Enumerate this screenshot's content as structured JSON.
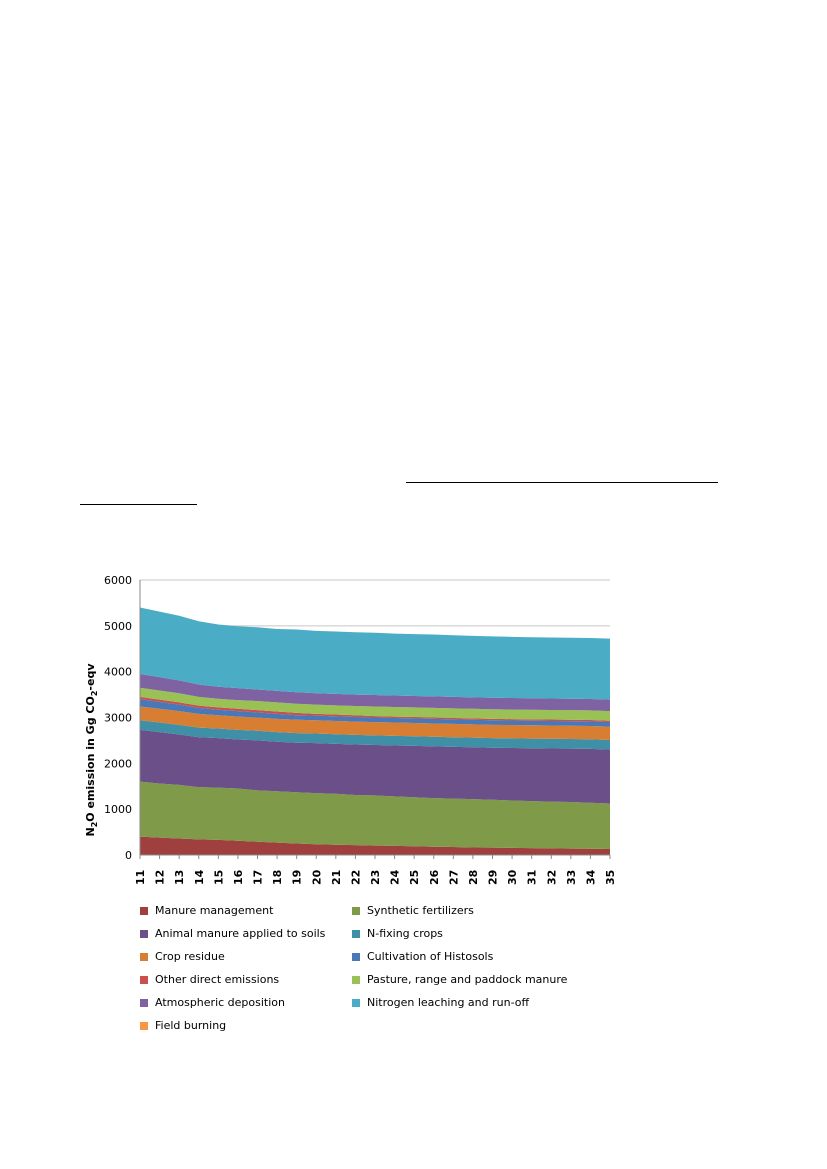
{
  "chart_data": {
    "type": "area",
    "stacked": true,
    "title": "",
    "ylabel": "N2O emission in Gg CO2-eqv",
    "ylabel_parts": {
      "pre": "N",
      "sub1": "2",
      "mid": "O emission in Gg CO",
      "sub2": "2",
      "post": "-eqv"
    },
    "xlabel": "",
    "ylim": [
      0,
      6000
    ],
    "yticks": [
      "0",
      "1000",
      "2000",
      "3000",
      "4000",
      "5000",
      "6000"
    ],
    "x": [
      "2011",
      "2012",
      "2013",
      "2014",
      "2015",
      "2016",
      "2017",
      "2018",
      "2019",
      "2020",
      "2021",
      "2022",
      "2023",
      "2024",
      "2025",
      "2026",
      "2027",
      "2028",
      "2029",
      "2030",
      "2031",
      "2032",
      "2033",
      "2034",
      "2035"
    ],
    "grid": "horizontal",
    "legend_position": "bottom",
    "series": [
      {
        "name": "Manure management",
        "color": "#a0403e",
        "values": [
          400,
          380,
          360,
          340,
          330,
          310,
          290,
          270,
          250,
          235,
          225,
          215,
          205,
          200,
          190,
          180,
          175,
          165,
          160,
          155,
          150,
          145,
          140,
          135,
          130
        ]
      },
      {
        "name": "Synthetic fertilizers",
        "color": "#7f9a48",
        "values": [
          1200,
          1180,
          1170,
          1140,
          1140,
          1140,
          1120,
          1120,
          1120,
          1115,
          1110,
          1095,
          1095,
          1080,
          1070,
          1060,
          1055,
          1055,
          1045,
          1035,
          1025,
          1020,
          1015,
          1005,
          995
        ]
      },
      {
        "name": "Animal manure applied to soils",
        "color": "#6a4f88",
        "values": [
          1130,
          1120,
          1100,
          1090,
          1080,
          1070,
          1090,
          1080,
          1080,
          1090,
          1090,
          1100,
          1100,
          1110,
          1120,
          1130,
          1130,
          1130,
          1135,
          1145,
          1155,
          1160,
          1165,
          1175,
          1175
        ]
      },
      {
        "name": "N-fixing crops",
        "color": "#3f8fa7",
        "values": [
          210,
          210,
          210,
          210,
          210,
          210,
          210,
          210,
          210,
          210,
          210,
          210,
          210,
          210,
          210,
          210,
          210,
          210,
          210,
          210,
          210,
          210,
          210,
          210,
          210
        ]
      },
      {
        "name": "Crop residue",
        "color": "#d87e33",
        "values": [
          300,
          300,
          300,
          300,
          290,
          290,
          290,
          290,
          290,
          290,
          290,
          290,
          290,
          290,
          290,
          290,
          290,
          290,
          290,
          290,
          290,
          290,
          290,
          290,
          290
        ]
      },
      {
        "name": "Cultivation of Histosols",
        "color": "#4978b8",
        "values": [
          160,
          150,
          140,
          130,
          120,
          120,
          110,
          110,
          100,
          100,
          100,
          100,
          100,
          100,
          100,
          100,
          100,
          100,
          100,
          100,
          100,
          100,
          100,
          100,
          100
        ]
      },
      {
        "name": "Other direct emissions",
        "color": "#c9504d",
        "values": [
          50,
          50,
          50,
          50,
          50,
          50,
          50,
          50,
          50,
          40,
          40,
          40,
          30,
          30,
          30,
          30,
          30,
          30,
          30,
          30,
          30,
          30,
          30,
          30,
          30
        ]
      },
      {
        "name": "Pasture, range and paddock manure",
        "color": "#9ac155",
        "values": [
          200,
          200,
          200,
          190,
          190,
          190,
          200,
          200,
          200,
          200,
          200,
          200,
          210,
          210,
          210,
          210,
          210,
          210,
          210,
          210,
          210,
          210,
          210,
          210,
          210
        ]
      },
      {
        "name": "Atmospheric deposition",
        "color": "#7e62a1",
        "values": [
          300,
          290,
          280,
          270,
          260,
          260,
          250,
          250,
          250,
          250,
          250,
          250,
          250,
          250,
          250,
          250,
          250,
          250,
          250,
          250,
          250,
          250,
          250,
          250,
          250
        ]
      },
      {
        "name": "Nitrogen leaching and run-off",
        "color": "#4bacc6",
        "values": [
          1450,
          1430,
          1410,
          1380,
          1360,
          1350,
          1360,
          1350,
          1370,
          1360,
          1360,
          1360,
          1360,
          1350,
          1350,
          1350,
          1345,
          1340,
          1340,
          1335,
          1330,
          1330,
          1330,
          1330,
          1330
        ]
      },
      {
        "name": "Field burning",
        "color": "#f79646",
        "values": [
          0,
          0,
          0,
          0,
          0,
          0,
          0,
          0,
          0,
          0,
          0,
          0,
          0,
          0,
          0,
          0,
          0,
          0,
          0,
          0,
          0,
          0,
          0,
          0,
          0
        ]
      }
    ]
  }
}
